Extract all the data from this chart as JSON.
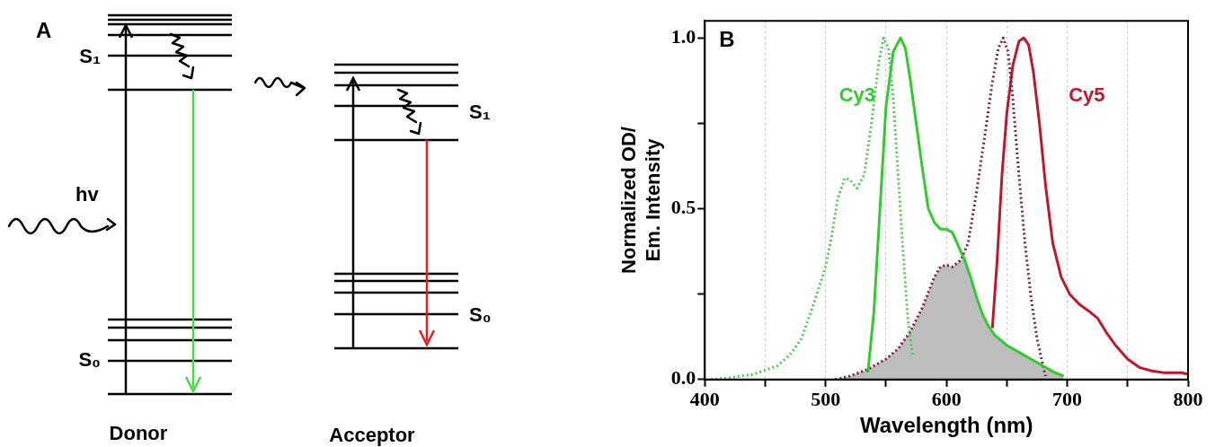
{
  "chart_data": [
    {
      "type": "other",
      "title": "A",
      "annotations": [
        "S₁",
        "S₀",
        "hv",
        "Donor",
        "S₁",
        "S₀",
        "Acceptor"
      ]
    },
    {
      "type": "line",
      "title": "B",
      "xlabel": "Wavelength (nm)",
      "ylabel": "Normalized OD/\nEm. Intensity",
      "xlim": [
        400,
        800
      ],
      "ylim": [
        0,
        1.05
      ],
      "xticks": [
        400,
        {
          "value": 450,
          "label": null
        },
        500,
        {
          "value": 550,
          "label": null
        },
        600,
        {
          "value": 650,
          "label": null
        },
        700,
        {
          "value": 750,
          "label": null
        },
        800
      ],
      "yticks": [
        {
          "value": 0,
          "label": "0.0"
        },
        {
          "value": 0.25,
          "label": null
        },
        {
          "value": 0.5,
          "label": "0.5"
        },
        {
          "value": 0.75,
          "label": null
        },
        {
          "value": 1,
          "label": "1.0"
        }
      ],
      "grid": "x",
      "marker": "none",
      "series": [
        {
          "color": "#4ccc4c",
          "line_style": "dotted",
          "x": [
            405,
            420,
            440,
            460,
            470,
            480,
            490,
            500,
            505,
            510,
            516,
            520,
            526,
            532,
            538,
            544,
            548,
            552,
            556,
            560,
            564,
            568,
            572
          ],
          "values": [
            0,
            0.005,
            0.015,
            0.04,
            0.07,
            0.12,
            0.22,
            0.33,
            0.42,
            0.53,
            0.59,
            0.585,
            0.56,
            0.6,
            0.75,
            0.93,
            1.0,
            0.97,
            0.82,
            0.6,
            0.38,
            0.18,
            0.07
          ]
        },
        {
          "name": "Cy3",
          "color": "#2ecc2e",
          "line_style": "solid",
          "x": [
            535,
            540,
            545,
            550,
            556,
            562,
            566,
            570,
            575,
            580,
            585,
            590,
            595,
            600,
            605,
            610,
            615,
            620,
            625,
            630,
            635,
            640,
            650,
            660,
            670,
            680,
            690,
            697
          ],
          "values": [
            0.02,
            0.2,
            0.5,
            0.8,
            0.96,
            1.0,
            0.97,
            0.88,
            0.75,
            0.62,
            0.5,
            0.46,
            0.44,
            0.44,
            0.43,
            0.39,
            0.35,
            0.3,
            0.24,
            0.19,
            0.155,
            0.13,
            0.1,
            0.08,
            0.06,
            0.04,
            0.02,
            0.01
          ]
        },
        {
          "color": "#7a2233",
          "line_style": "dotted",
          "x": [
            508,
            520,
            535,
            550,
            560,
            570,
            580,
            590,
            595,
            600,
            605,
            612,
            618,
            625,
            632,
            638,
            643,
            647,
            651,
            655,
            660,
            665,
            670,
            675,
            680,
            682
          ],
          "values": [
            0,
            0.01,
            0.03,
            0.06,
            0.09,
            0.14,
            0.21,
            0.3,
            0.33,
            0.335,
            0.33,
            0.35,
            0.4,
            0.55,
            0.72,
            0.87,
            0.97,
            1.0,
            0.96,
            0.82,
            0.6,
            0.4,
            0.24,
            0.12,
            0.04,
            0.01
          ]
        },
        {
          "name": "Cy5",
          "color": "#c0182a",
          "line_style": "solid",
          "x": [
            638,
            642,
            646,
            650,
            655,
            660,
            664,
            668,
            672,
            677,
            682,
            688,
            695,
            702,
            710,
            718,
            725,
            732,
            740,
            750,
            760,
            770,
            780,
            795,
            800
          ],
          "values": [
            0.15,
            0.35,
            0.6,
            0.78,
            0.92,
            0.99,
            1.0,
            0.98,
            0.9,
            0.75,
            0.57,
            0.4,
            0.3,
            0.25,
            0.22,
            0.2,
            0.18,
            0.14,
            0.1,
            0.06,
            0.035,
            0.025,
            0.02,
            0.02,
            0.015
          ]
        },
        {
          "type": "area",
          "color": "#bdbdbd",
          "x": [
            508,
            520,
            535,
            550,
            560,
            570,
            580,
            590,
            595,
            600,
            605,
            612,
            616,
            620,
            625,
            630,
            640,
            650,
            660,
            670,
            680,
            690,
            697
          ],
          "values": [
            0,
            0.01,
            0.03,
            0.06,
            0.09,
            0.14,
            0.21,
            0.3,
            0.33,
            0.335,
            0.33,
            0.35,
            0.36,
            0.3,
            0.24,
            0.19,
            0.13,
            0.1,
            0.08,
            0.06,
            0.04,
            0.02,
            0.01
          ]
        }
      ]
    }
  ]
}
